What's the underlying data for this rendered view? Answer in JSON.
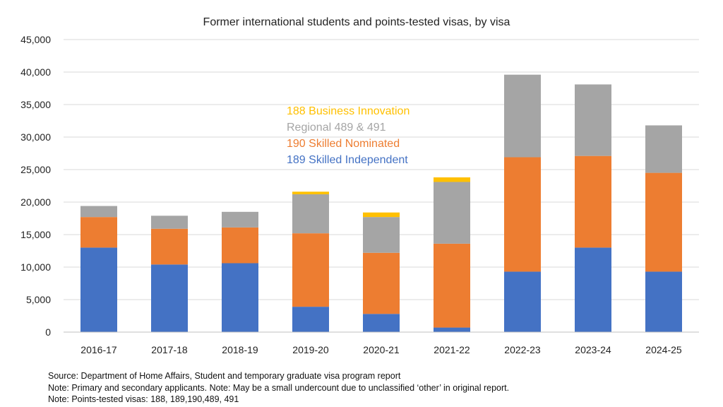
{
  "chart_data": {
    "type": "bar",
    "stacked": true,
    "title": "Former international students and points-tested visas, by visa",
    "xlabel": "",
    "ylabel": "",
    "ylim": [
      0,
      45000
    ],
    "yticks": [
      0,
      5000,
      10000,
      15000,
      20000,
      25000,
      30000,
      35000,
      40000,
      45000
    ],
    "ytick_labels": [
      "0",
      "5,000",
      "10,000",
      "15,000",
      "20,000",
      "25,000",
      "30,000",
      "35,000",
      "40,000",
      "45,000"
    ],
    "grid": true,
    "legend_position": "inside-center",
    "categories": [
      "2016-17",
      "2017-18",
      "2018-19",
      "2019-20",
      "2020-21",
      "2021-22",
      "2022-23",
      "2023-24",
      "2024-25"
    ],
    "series": [
      {
        "name": "189 Skilled Independent",
        "color": "#4472C4",
        "values": [
          13000,
          10400,
          10600,
          3900,
          2800,
          700,
          9300,
          13000,
          9300
        ]
      },
      {
        "name": "190 Skilled Nominated",
        "color": "#ED7D31",
        "values": [
          4700,
          5500,
          5500,
          11300,
          9400,
          12900,
          17600,
          14100,
          15200
        ]
      },
      {
        "name": "Regional 489 & 491",
        "color": "#A5A5A5",
        "values": [
          1700,
          2000,
          2400,
          6000,
          5500,
          9500,
          12700,
          11000,
          7300
        ]
      },
      {
        "name": "188 Business Innovation",
        "color": "#FFC000",
        "values": [
          0,
          0,
          0,
          400,
          700,
          700,
          0,
          0,
          0
        ]
      }
    ]
  },
  "notes": {
    "source": "Source: Department of Home Affairs, Student and temporary graduate visa program report",
    "note1": "Note: Primary and secondary applicants. Note: May be a small undercount due to unclassified ‘other’ in original report.",
    "note2": "Note: Points-tested visas: 188, 189,190,489, 491"
  }
}
